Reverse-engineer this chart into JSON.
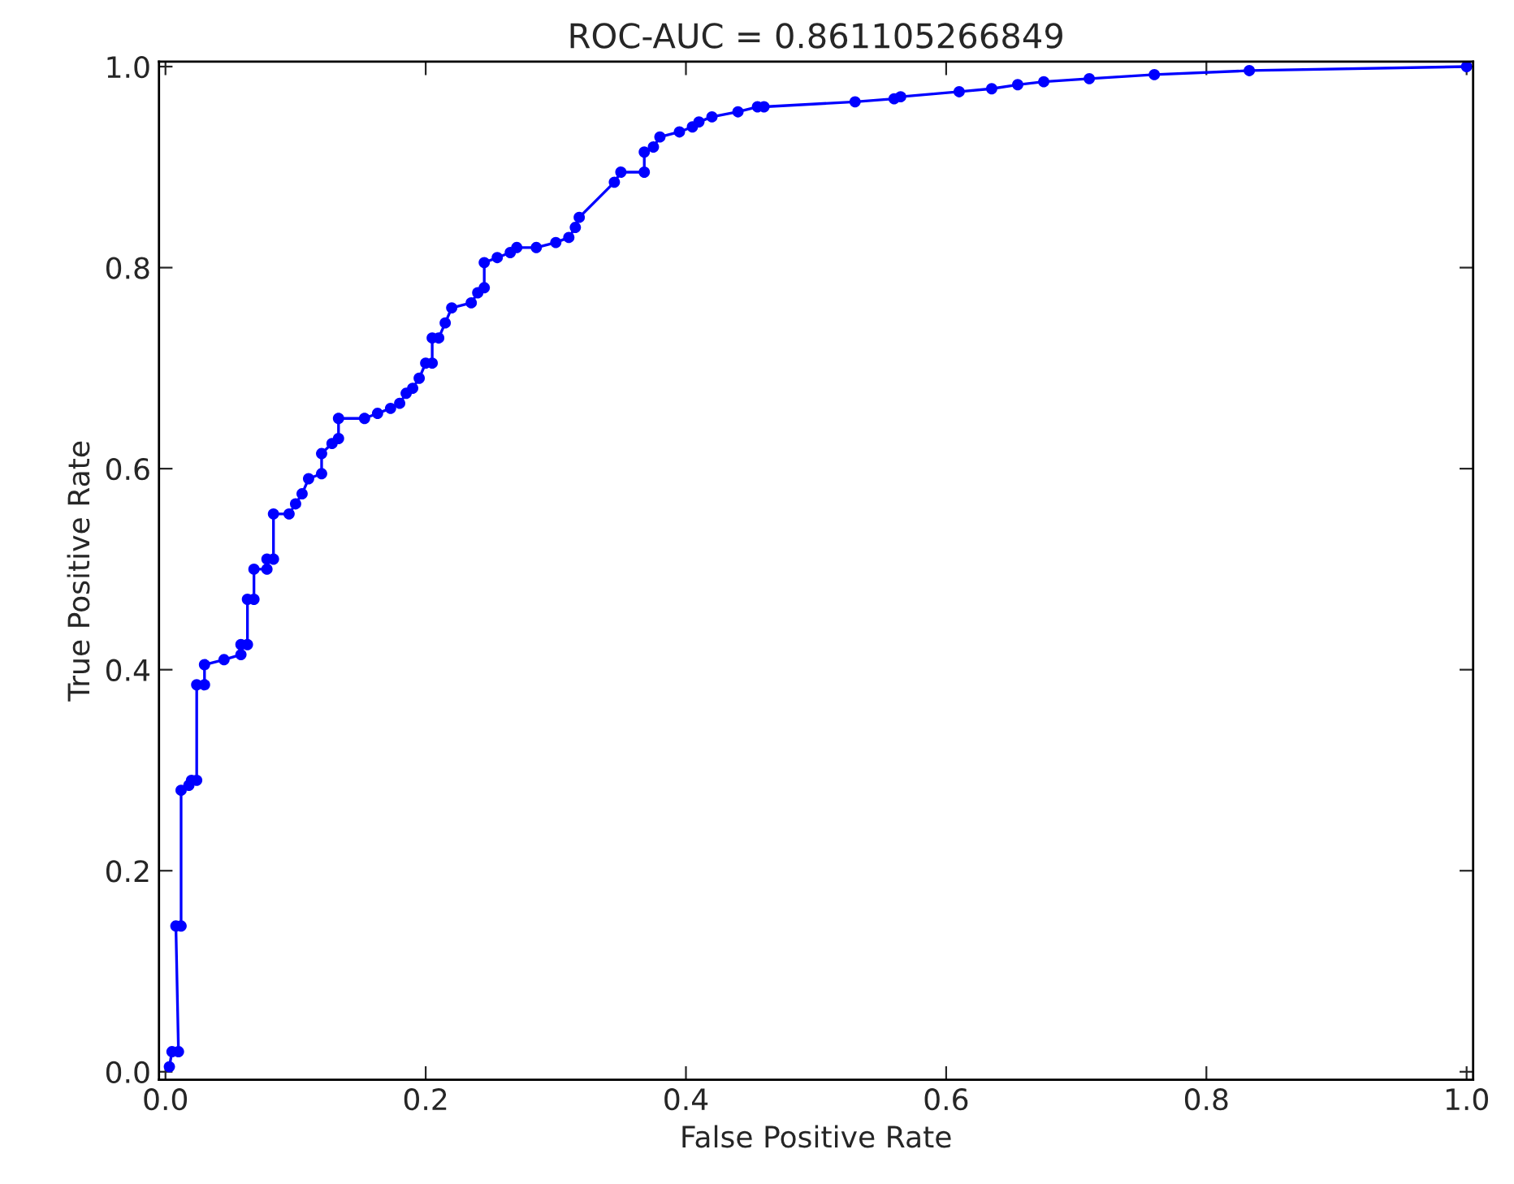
{
  "chart_data": {
    "type": "line",
    "title": "ROC-AUC = 0.861105266849",
    "xlabel": "False Positive Rate",
    "ylabel": "True Positive Rate",
    "xlim": [
      -0.005,
      1.005
    ],
    "ylim": [
      -0.008,
      1.005
    ],
    "xticks": [
      {
        "value": 0,
        "label": "0.0"
      },
      {
        "value": 0.2,
        "label": "0.2"
      },
      {
        "value": 0.4,
        "label": "0.4"
      },
      {
        "value": 0.6,
        "label": "0.6"
      },
      {
        "value": 0.8,
        "label": "0.8"
      },
      {
        "value": 1,
        "label": "1.0"
      }
    ],
    "yticks": [
      {
        "value": 0,
        "label": "0.0"
      },
      {
        "value": 0.2,
        "label": "0.2"
      },
      {
        "value": 0.4,
        "label": "0.4"
      },
      {
        "value": 0.6,
        "label": "0.6"
      },
      {
        "value": 0.8,
        "label": "0.8"
      },
      {
        "value": 1,
        "label": "1.0"
      }
    ],
    "grid": false,
    "marker": "circle",
    "line_style": "solid",
    "series": [
      {
        "color": "#0000ff",
        "x": [
          0.003,
          0.005,
          0.01,
          0.008,
          0.012,
          0.012,
          0.018,
          0.02,
          0.024,
          0.024,
          0.03,
          0.03,
          0.045,
          0.058,
          0.058,
          0.063,
          0.063,
          0.068,
          0.068,
          0.078,
          0.078,
          0.083,
          0.083,
          0.095,
          0.1,
          0.105,
          0.11,
          0.12,
          0.12,
          0.128,
          0.133,
          0.133,
          0.153,
          0.163,
          0.173,
          0.18,
          0.185,
          0.19,
          0.195,
          0.2,
          0.205,
          0.205,
          0.21,
          0.215,
          0.22,
          0.235,
          0.24,
          0.245,
          0.245,
          0.255,
          0.265,
          0.27,
          0.285,
          0.3,
          0.31,
          0.315,
          0.318,
          0.345,
          0.35,
          0.368,
          0.368,
          0.375,
          0.38,
          0.395,
          0.405,
          0.41,
          0.42,
          0.44,
          0.455,
          0.46,
          0.53,
          0.56,
          0.565,
          0.61,
          0.635,
          0.655,
          0.675,
          0.71,
          0.76,
          0.833,
          1.0
        ],
        "values": [
          0.005,
          0.02,
          0.02,
          0.145,
          0.145,
          0.28,
          0.285,
          0.29,
          0.29,
          0.385,
          0.385,
          0.405,
          0.41,
          0.415,
          0.425,
          0.425,
          0.47,
          0.47,
          0.5,
          0.5,
          0.51,
          0.51,
          0.555,
          0.555,
          0.565,
          0.575,
          0.59,
          0.595,
          0.615,
          0.625,
          0.63,
          0.65,
          0.65,
          0.655,
          0.66,
          0.665,
          0.675,
          0.68,
          0.69,
          0.705,
          0.705,
          0.73,
          0.73,
          0.745,
          0.76,
          0.765,
          0.775,
          0.78,
          0.805,
          0.81,
          0.815,
          0.82,
          0.82,
          0.825,
          0.83,
          0.84,
          0.85,
          0.885,
          0.895,
          0.895,
          0.915,
          0.92,
          0.93,
          0.935,
          0.94,
          0.945,
          0.95,
          0.955,
          0.96,
          0.96,
          0.965,
          0.968,
          0.97,
          0.975,
          0.978,
          0.982,
          0.985,
          0.988,
          0.992,
          0.996,
          1.0
        ]
      }
    ]
  }
}
